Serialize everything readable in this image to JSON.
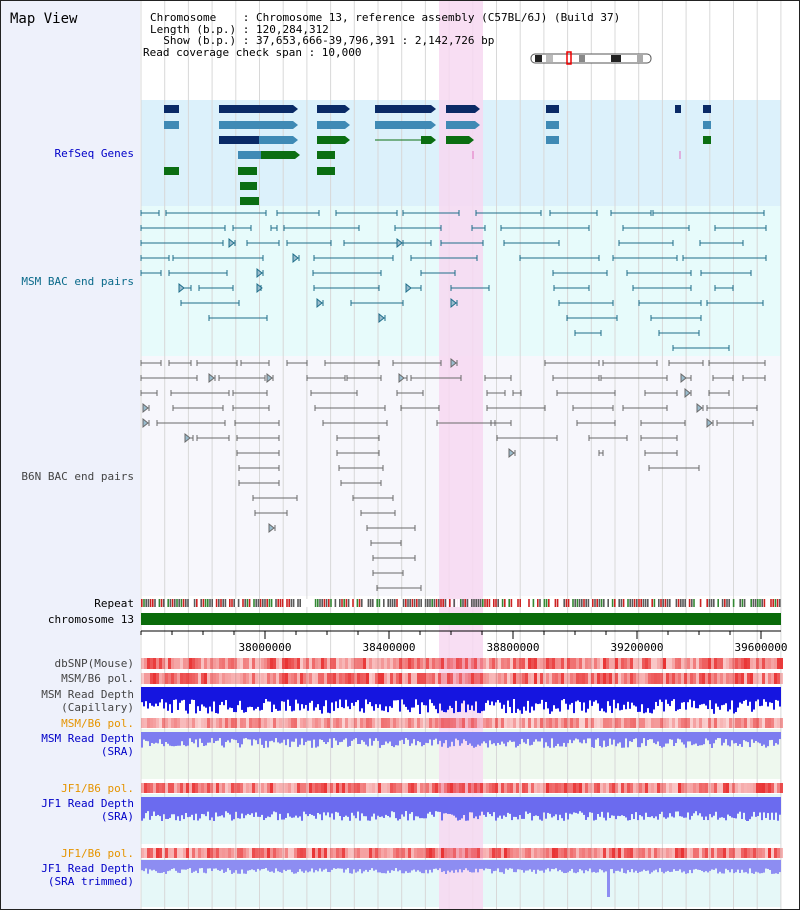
{
  "header": {
    "title": "Map View",
    "chromosome_line": "Chromosome    : Chromosome 13, reference assembly (C57BL/6J) (Build 37)",
    "length_line": "Length (b.p.) : 120,284,312",
    "show_line": "  Show (b.p.) : 37,653,666-39,796,391 : 2,142,726 bp",
    "coverage_line": "Read coverage check span : 10,000"
  },
  "tracks": {
    "refseq": "RefSeq Genes",
    "msm_bac": "MSM BAC end pairs",
    "b6n_bac": "B6N BAC end pairs",
    "repeat": "Repeat",
    "chromosome": "chromosome 13",
    "dbsnp": "dbSNP(Mouse)",
    "msm_b6_pol_1": "MSM/B6 pol.",
    "msm_read_depth_cap": "MSM Read Depth\n(Capillary)",
    "msm_b6_pol_2": "MSM/B6 pol.",
    "msm_read_depth_sra": "MSM Read Depth\n(SRA)",
    "jf1_b6_pol_1": "JF1/B6 pol.",
    "jf1_read_depth_sra": "JF1 Read Depth\n(SRA)",
    "jf1_b6_pol_2": "JF1/B6 pol.",
    "jf1_read_depth_trim": "JF1 Read Depth\n(SRA trimmed)"
  },
  "axis": {
    "ticks": [
      "38000000",
      "38400000",
      "38800000",
      "39200000",
      "39600000"
    ]
  },
  "colors": {
    "refseq_bg": "#dcf1fb",
    "msm_bac_bg": "#e7fbfb",
    "b6n_bac_bg": "#f7f7fc",
    "highlight": "#f7d8f1",
    "gene_dark": "#0a2a66",
    "gene_mid": "#3f8ab5",
    "gene_green": "#0b6e12",
    "bac_teal": "#1f6e8a",
    "bac_gray": "#6a6a6a",
    "chrom_green": "#0a6b0a",
    "depth_blue": "#1515e0",
    "depth_light": "#7d7df0",
    "label_blue": "#0000c8",
    "label_orange": "#e59400",
    "label_teal": "#0a6a8a"
  }
}
